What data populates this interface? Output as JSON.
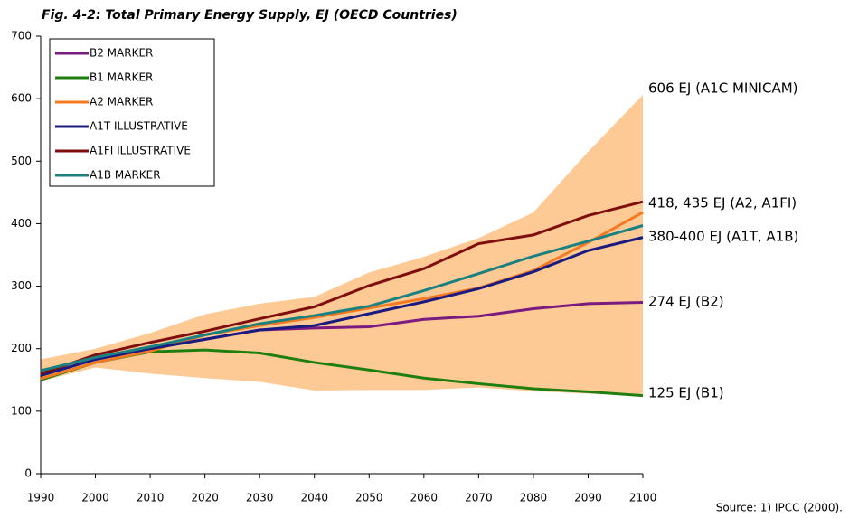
{
  "chart_data": {
    "type": "line",
    "title": "Fig. 4-2: Total Primary Energy Supply, EJ (OECD Countries)",
    "source": "Source: 1) IPCC (2000).",
    "x": [
      1990,
      2000,
      2010,
      2020,
      2030,
      2040,
      2050,
      2060,
      2070,
      2080,
      2090,
      2100
    ],
    "xlim": [
      1990,
      2100
    ],
    "ylim": [
      0,
      700
    ],
    "yticks": [
      0,
      100,
      200,
      300,
      400,
      500,
      600,
      700
    ],
    "grid": false,
    "legend": "top-left",
    "envelope": {
      "color": "#fdca96",
      "upper": [
        183,
        200,
        225,
        255,
        272,
        283,
        322,
        347,
        377,
        418,
        515,
        606
      ],
      "lower": [
        148,
        170,
        160,
        153,
        147,
        133,
        134,
        134,
        138,
        132,
        128,
        125
      ]
    },
    "series": [
      {
        "name": "B2 MARKER",
        "color": "#7b1a7f",
        "values": [
          157,
          183,
          200,
          215,
          230,
          233,
          235,
          247,
          252,
          264,
          272,
          274
        ]
      },
      {
        "name": "B1 MARKER",
        "color": "#1e7f0f",
        "values": [
          150,
          178,
          195,
          198,
          193,
          178,
          166,
          153,
          144,
          136,
          131,
          125
        ]
      },
      {
        "name": "A2 MARKER",
        "color": "#f47920",
        "values": [
          152,
          178,
          196,
          222,
          237,
          250,
          265,
          280,
          297,
          325,
          370,
          418
        ]
      },
      {
        "name": "A1T ILLUSTRATIVE",
        "color": "#1a1a80",
        "values": [
          157,
          183,
          200,
          215,
          230,
          237,
          256,
          275,
          296,
          323,
          357,
          378
        ]
      },
      {
        "name": "A1FI ILLUSTRATIVE",
        "color": "#7f0f0f",
        "values": [
          160,
          190,
          210,
          228,
          248,
          267,
          301,
          328,
          368,
          382,
          413,
          435
        ]
      },
      {
        "name": "A1B MARKER",
        "color": "#1a8080",
        "values": [
          165,
          186,
          203,
          222,
          240,
          253,
          268,
          293,
          320,
          348,
          372,
          397
        ]
      }
    ],
    "annotations": [
      "606 EJ (A1C MINICAM)",
      "418, 435 EJ (A2, A1FI)",
      "380-400 EJ (A1T, A1B)",
      "274 EJ (B2)",
      "125 EJ (B1)"
    ]
  }
}
